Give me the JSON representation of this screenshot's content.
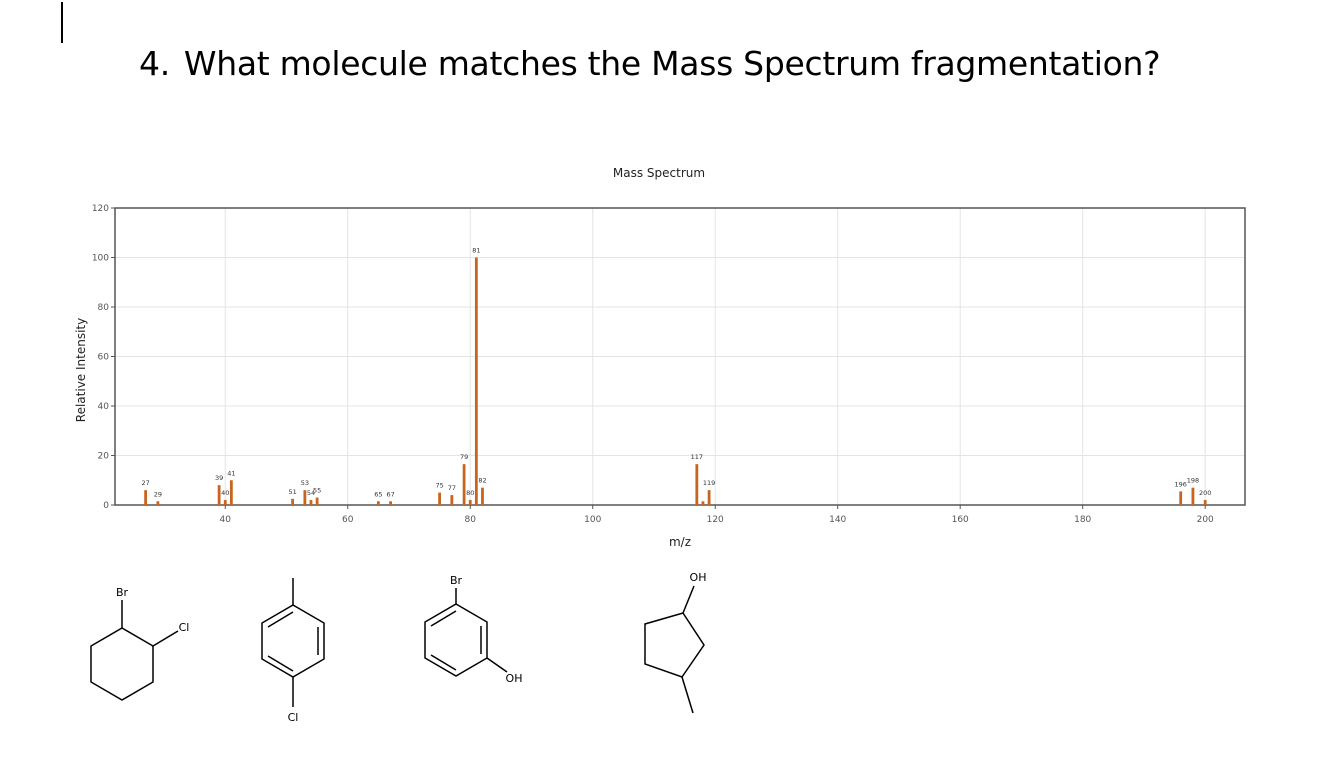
{
  "question": {
    "number": "4.",
    "text": "What molecule matches the Mass Spectrum fragmentation?"
  },
  "chart_data": {
    "type": "bar",
    "title": "Mass Spectrum",
    "xlabel": "m/z",
    "ylabel": "Relative Intensity",
    "xlim": [
      22,
      206.5
    ],
    "ylim": [
      0,
      120
    ],
    "xticks": [
      40,
      60,
      80,
      100,
      120,
      140,
      160,
      180,
      200
    ],
    "yticks": [
      0,
      20,
      40,
      60,
      80,
      100,
      120
    ],
    "grid": true,
    "bar_color": "#c8641e",
    "x": [
      27,
      29,
      39,
      40,
      41,
      51,
      53,
      54,
      55,
      65,
      67,
      75,
      77,
      79,
      80,
      81,
      82,
      117,
      118,
      119,
      196,
      198,
      200
    ],
    "values": [
      6,
      1.5,
      8,
      2,
      10,
      2.5,
      6,
      2,
      3,
      1.5,
      1.5,
      5,
      4,
      16.5,
      2,
      100,
      7,
      16.5,
      1.5,
      6,
      5.5,
      7,
      2
    ],
    "peak_labels": [
      "27",
      "29",
      "39",
      "40",
      "41",
      "51",
      "53",
      "54",
      "55",
      "65",
      "67",
      "75",
      "77",
      "79",
      "80",
      "81",
      "82",
      "117",
      "",
      "119",
      "196",
      "198",
      "200"
    ]
  },
  "molecules": [
    {
      "name": "1-bromo-2-chlorocyclohexane",
      "labels": [
        "Br",
        "Cl"
      ]
    },
    {
      "name": "4-chlorotoluene",
      "labels": [
        "Cl"
      ]
    },
    {
      "name": "3-bromophenol",
      "labels": [
        "Br",
        "OH"
      ]
    },
    {
      "name": "3-methylcyclopentanol",
      "labels": [
        "OH"
      ]
    }
  ]
}
